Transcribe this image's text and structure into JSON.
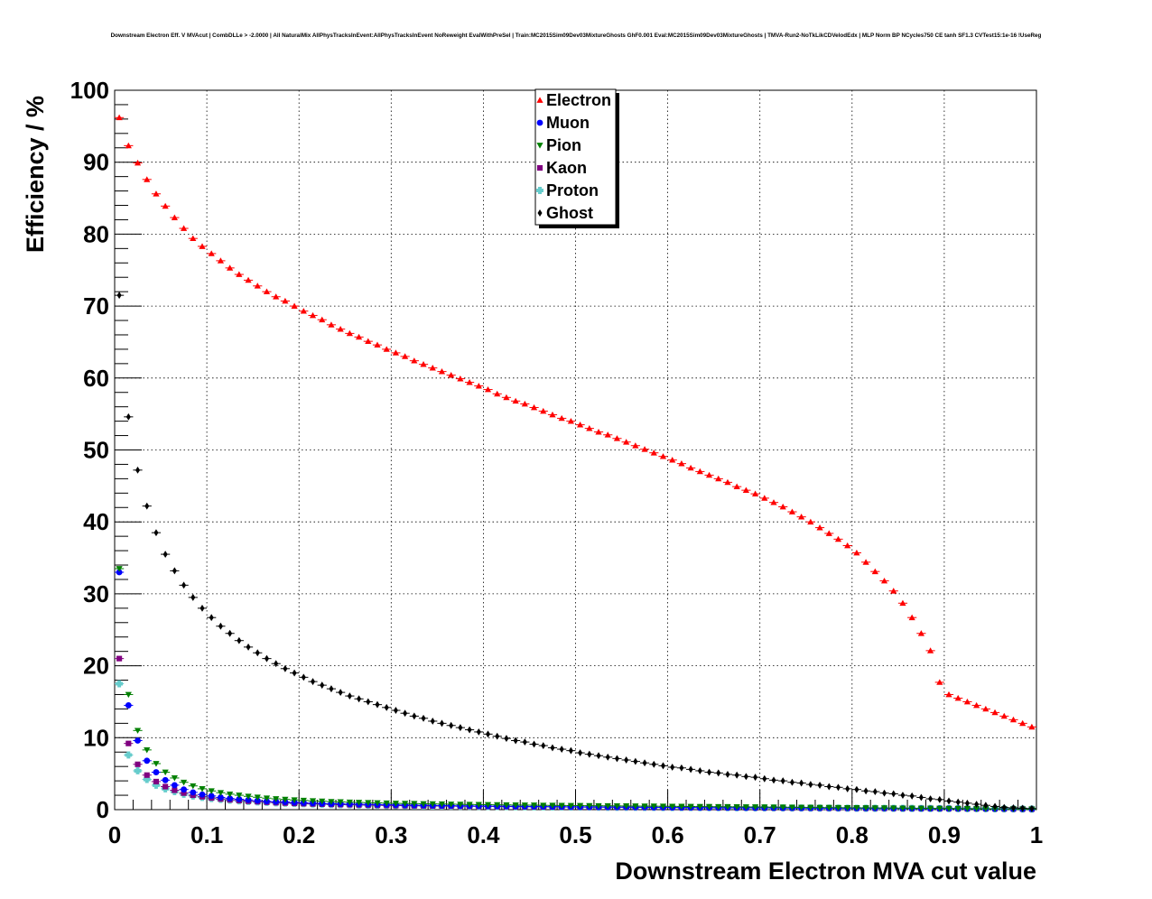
{
  "chart_data": {
    "type": "scatter",
    "title": "Downstream Electron Eff. V MVAcut | CombDLLe > -2.0000 | All NaturalMix AllPhysTracksInEvent:AllPhysTracksInEvent NoReweight EvalWithPreSel | Train:MC2015Sim09Dev03MixtureGhosts GhF0.001 Eval:MC2015Sim09Dev03MixtureGhosts | TMVA-Run2-NoTkLikCDVelodEdx | MLP Norm BP NCycles750 CE tanh SF1.3 CVTest15:1e-16 !UseReg",
    "xlabel": "Downstream Electron MVA cut value",
    "ylabel": "Efficiency / %",
    "xlim": [
      0,
      1
    ],
    "ylim": [
      0,
      100
    ],
    "x_ticks": [
      "0",
      "0.1",
      "0.2",
      "0.3",
      "0.4",
      "0.5",
      "0.6",
      "0.7",
      "0.8",
      "0.9",
      "1"
    ],
    "y_ticks": [
      "0",
      "10",
      "20",
      "30",
      "40",
      "50",
      "60",
      "70",
      "80",
      "90",
      "100"
    ],
    "grid": true,
    "legend_position": "top-center",
    "x": [
      0.005,
      0.015,
      0.025,
      0.035,
      0.045,
      0.055,
      0.065,
      0.075,
      0.085,
      0.095,
      0.105,
      0.115,
      0.125,
      0.135,
      0.145,
      0.155,
      0.165,
      0.175,
      0.185,
      0.195,
      0.205,
      0.215,
      0.225,
      0.235,
      0.245,
      0.255,
      0.265,
      0.275,
      0.285,
      0.295,
      0.305,
      0.315,
      0.325,
      0.335,
      0.345,
      0.355,
      0.365,
      0.375,
      0.385,
      0.395,
      0.405,
      0.415,
      0.425,
      0.435,
      0.445,
      0.455,
      0.465,
      0.475,
      0.485,
      0.495,
      0.505,
      0.515,
      0.525,
      0.535,
      0.545,
      0.555,
      0.565,
      0.575,
      0.585,
      0.595,
      0.605,
      0.615,
      0.625,
      0.635,
      0.645,
      0.655,
      0.665,
      0.675,
      0.685,
      0.695,
      0.705,
      0.715,
      0.725,
      0.735,
      0.745,
      0.755,
      0.765,
      0.775,
      0.785,
      0.795,
      0.805,
      0.815,
      0.825,
      0.835,
      0.845,
      0.855,
      0.865,
      0.875,
      0.885,
      0.895,
      0.905,
      0.915,
      0.925,
      0.935,
      0.945,
      0.955,
      0.965,
      0.975,
      0.985,
      0.995
    ],
    "series": [
      {
        "name": "Electron",
        "color": "#ff0000",
        "marker": "triangle-up",
        "values": [
          96.2,
          92.3,
          89.9,
          87.6,
          85.6,
          83.9,
          82.3,
          80.8,
          79.4,
          78.3,
          77.3,
          76.3,
          75.3,
          74.4,
          73.6,
          72.8,
          72.0,
          71.3,
          70.7,
          70.0,
          69.3,
          68.7,
          68.1,
          67.4,
          66.8,
          66.2,
          65.7,
          65.1,
          64.6,
          64.0,
          63.5,
          63.0,
          62.4,
          61.9,
          61.4,
          60.9,
          60.4,
          59.9,
          59.4,
          58.9,
          58.4,
          57.8,
          57.3,
          56.8,
          56.4,
          55.9,
          55.4,
          54.9,
          54.4,
          54.0,
          53.5,
          53.0,
          52.5,
          52.1,
          51.6,
          51.1,
          50.6,
          50.1,
          49.6,
          49.1,
          48.6,
          48.1,
          47.5,
          47.0,
          46.5,
          46.0,
          45.5,
          44.9,
          44.4,
          43.9,
          43.3,
          42.7,
          42.1,
          41.4,
          40.7,
          40.0,
          39.2,
          38.4,
          37.6,
          36.7,
          35.7,
          34.4,
          33.1,
          31.8,
          30.4,
          28.7,
          26.7,
          24.5,
          22.1,
          17.7,
          16.0,
          15.5,
          15.0,
          14.5,
          14.0,
          13.5,
          13.0,
          12.5,
          12.0,
          11.5
        ]
      },
      {
        "name": "Muon",
        "color": "#0000ff",
        "marker": "circle",
        "values": [
          33.0,
          14.5,
          9.6,
          6.8,
          5.2,
          4.1,
          3.4,
          2.8,
          2.4,
          2.1,
          1.9,
          1.7,
          1.55,
          1.45,
          1.35,
          1.25,
          1.15,
          1.1,
          1.05,
          1.0,
          0.95,
          0.9,
          0.85,
          0.82,
          0.8,
          0.77,
          0.75,
          0.72,
          0.7,
          0.68,
          0.66,
          0.64,
          0.62,
          0.6,
          0.58,
          0.56,
          0.55,
          0.53,
          0.52,
          0.5,
          0.49,
          0.48,
          0.47,
          0.46,
          0.45,
          0.44,
          0.43,
          0.42,
          0.41,
          0.4,
          0.39,
          0.38,
          0.37,
          0.36,
          0.35,
          0.35,
          0.34,
          0.33,
          0.32,
          0.32,
          0.31,
          0.3,
          0.3,
          0.29,
          0.28,
          0.28,
          0.27,
          0.27,
          0.26,
          0.26,
          0.25,
          0.25,
          0.24,
          0.24,
          0.23,
          0.23,
          0.22,
          0.22,
          0.21,
          0.21,
          0.2,
          0.2,
          0.19,
          0.19,
          0.18,
          0.18,
          0.17,
          0.17,
          0.16,
          0.16,
          0.15,
          0.15,
          0.14,
          0.14,
          0.13,
          0.12,
          0.11,
          0.1,
          0.09,
          0.08
        ]
      },
      {
        "name": "Pion",
        "color": "#008000",
        "marker": "triangle-down",
        "values": [
          33.5,
          16.0,
          11.0,
          8.3,
          6.4,
          5.2,
          4.4,
          3.8,
          3.3,
          2.9,
          2.6,
          2.35,
          2.15,
          2.0,
          1.85,
          1.72,
          1.6,
          1.5,
          1.42,
          1.35,
          1.28,
          1.22,
          1.17,
          1.12,
          1.08,
          1.04,
          1.0,
          0.97,
          0.94,
          0.91,
          0.88,
          0.86,
          0.84,
          0.82,
          0.8,
          0.78,
          0.76,
          0.74,
          0.72,
          0.7,
          0.69,
          0.67,
          0.66,
          0.64,
          0.63,
          0.62,
          0.6,
          0.59,
          0.58,
          0.57,
          0.56,
          0.55,
          0.54,
          0.53,
          0.52,
          0.51,
          0.5,
          0.49,
          0.48,
          0.47,
          0.46,
          0.45,
          0.44,
          0.43,
          0.42,
          0.41,
          0.4,
          0.39,
          0.38,
          0.37,
          0.36,
          0.35,
          0.34,
          0.33,
          0.32,
          0.31,
          0.3,
          0.29,
          0.28,
          0.27,
          0.26,
          0.25,
          0.24,
          0.23,
          0.22,
          0.21,
          0.2,
          0.19,
          0.18,
          0.17,
          0.16,
          0.15,
          0.14,
          0.13,
          0.12,
          0.11,
          0.1,
          0.09,
          0.08,
          0.07
        ]
      },
      {
        "name": "Kaon",
        "color": "#800080",
        "marker": "square",
        "values": [
          21.0,
          9.2,
          6.3,
          4.8,
          3.9,
          3.2,
          2.7,
          2.3,
          2.0,
          1.8,
          1.62,
          1.48,
          1.36,
          1.26,
          1.17,
          1.1,
          1.03,
          0.97,
          0.92,
          0.87,
          0.83,
          0.79,
          0.76,
          0.73,
          0.7,
          0.68,
          0.65,
          0.63,
          0.61,
          0.59,
          0.57,
          0.56,
          0.54,
          0.53,
          0.51,
          0.5,
          0.49,
          0.48,
          0.47,
          0.46,
          0.45,
          0.44,
          0.43,
          0.42,
          0.41,
          0.4,
          0.39,
          0.38,
          0.37,
          0.37,
          0.36,
          0.35,
          0.35,
          0.34,
          0.33,
          0.33,
          0.32,
          0.31,
          0.31,
          0.3,
          0.3,
          0.29,
          0.29,
          0.28,
          0.28,
          0.27,
          0.27,
          0.26,
          0.26,
          0.25,
          0.25,
          0.24,
          0.24,
          0.23,
          0.23,
          0.22,
          0.22,
          0.21,
          0.21,
          0.2,
          0.2,
          0.19,
          0.19,
          0.18,
          0.18,
          0.17,
          0.17,
          0.16,
          0.16,
          0.15,
          0.15,
          0.14,
          0.14,
          0.13,
          0.13,
          0.12,
          0.11,
          0.1,
          0.09,
          0.08
        ]
      },
      {
        "name": "Proton",
        "color": "#66cccc",
        "marker": "cross",
        "values": [
          17.5,
          7.6,
          5.4,
          4.2,
          3.4,
          2.9,
          2.5,
          2.15,
          1.9,
          1.7,
          1.55,
          1.42,
          1.31,
          1.22,
          1.14,
          1.07,
          1.01,
          0.95,
          0.9,
          0.86,
          0.82,
          0.78,
          0.75,
          0.72,
          0.69,
          0.67,
          0.64,
          0.62,
          0.6,
          0.58,
          0.56,
          0.55,
          0.53,
          0.52,
          0.5,
          0.49,
          0.48,
          0.47,
          0.46,
          0.45,
          0.44,
          0.43,
          0.42,
          0.41,
          0.4,
          0.39,
          0.38,
          0.37,
          0.37,
          0.36,
          0.35,
          0.35,
          0.34,
          0.33,
          0.33,
          0.32,
          0.32,
          0.31,
          0.31,
          0.3,
          0.3,
          0.29,
          0.29,
          0.28,
          0.28,
          0.27,
          0.27,
          0.26,
          0.26,
          0.25,
          0.25,
          0.24,
          0.24,
          0.23,
          0.23,
          0.22,
          0.22,
          0.21,
          0.21,
          0.2,
          0.2,
          0.19,
          0.19,
          0.18,
          0.18,
          0.17,
          0.17,
          0.16,
          0.16,
          0.15,
          0.15,
          0.14,
          0.14,
          0.13,
          0.13,
          0.12,
          0.11,
          0.1,
          0.09,
          0.08
        ]
      },
      {
        "name": "Ghost",
        "color": "#000000",
        "marker": "diamond",
        "values": [
          71.5,
          54.6,
          47.2,
          42.2,
          38.5,
          35.5,
          33.2,
          31.2,
          29.5,
          28.0,
          26.7,
          25.5,
          24.5,
          23.5,
          22.6,
          21.8,
          21.0,
          20.3,
          19.6,
          19.0,
          18.4,
          17.8,
          17.3,
          16.8,
          16.3,
          15.8,
          15.4,
          15.0,
          14.6,
          14.2,
          13.8,
          13.4,
          13.0,
          12.7,
          12.3,
          12.0,
          11.7,
          11.4,
          11.1,
          10.8,
          10.5,
          10.2,
          9.9,
          9.6,
          9.4,
          9.1,
          8.9,
          8.6,
          8.4,
          8.2,
          7.9,
          7.7,
          7.5,
          7.3,
          7.1,
          6.9,
          6.7,
          6.5,
          6.3,
          6.1,
          5.9,
          5.8,
          5.6,
          5.4,
          5.2,
          5.1,
          4.9,
          4.8,
          4.6,
          4.5,
          4.3,
          4.1,
          4.0,
          3.8,
          3.7,
          3.5,
          3.4,
          3.2,
          3.1,
          2.9,
          2.8,
          2.6,
          2.5,
          2.3,
          2.2,
          2.0,
          1.9,
          1.7,
          1.5,
          1.4,
          1.2,
          1.05,
          0.9,
          0.75,
          0.6,
          0.45,
          0.3,
          0.25,
          0.2,
          0.15
        ]
      }
    ]
  }
}
